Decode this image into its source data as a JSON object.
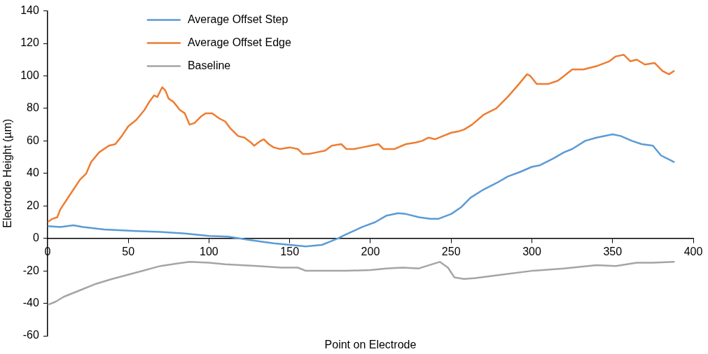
{
  "chart_data": {
    "type": "line",
    "xlabel": "Point on Electrode",
    "ylabel": "Electrode Height (µm)",
    "xlim": [
      0,
      400
    ],
    "xticks": [
      0,
      50,
      100,
      150,
      200,
      250,
      300,
      350,
      400
    ],
    "ylim": [
      -60,
      140
    ],
    "yticks": [
      -60,
      -40,
      -20,
      0,
      20,
      40,
      60,
      80,
      100,
      120,
      140
    ],
    "grid": false,
    "legend": "top left",
    "marker": "none",
    "line_style": "solid",
    "series": [
      {
        "name": "Average Offset Step",
        "color": "#5b9bd5",
        "x": [
          0,
          8,
          16,
          22,
          35,
          55,
          70,
          85,
          100,
          112,
          125,
          140,
          150,
          160,
          170,
          175,
          180,
          185,
          195,
          203,
          210,
          217,
          222,
          230,
          237,
          242,
          250,
          256,
          262,
          270,
          278,
          285,
          293,
          300,
          305,
          313,
          320,
          325,
          333,
          340,
          350,
          355,
          362,
          368,
          375,
          380,
          386,
          388
        ],
        "values": [
          7.5,
          7,
          8,
          7,
          5.5,
          4.5,
          4,
          3,
          1.5,
          1,
          -1,
          -3,
          -4,
          -5,
          -4,
          -2,
          0,
          2.5,
          7,
          10,
          14,
          15.5,
          15,
          13,
          12,
          12,
          15,
          19,
          25,
          30,
          34,
          38,
          41,
          44,
          45,
          49,
          53,
          55,
          60,
          62,
          64,
          63,
          60,
          58,
          57,
          51,
          48,
          47
        ]
      },
      {
        "name": "Average Offset Edge",
        "color": "#ed7d31",
        "x": [
          0,
          3,
          6,
          8,
          12,
          16,
          20,
          24,
          27,
          32,
          38,
          42,
          46,
          50,
          55,
          60,
          63,
          66,
          68,
          71,
          73,
          75,
          78,
          82,
          85,
          88,
          91,
          95,
          98,
          102,
          106,
          110,
          113,
          118,
          122,
          126,
          128,
          132,
          134,
          137,
          140,
          144,
          150,
          155,
          158,
          162,
          167,
          172,
          176,
          182,
          185,
          190,
          195,
          200,
          205,
          208,
          215,
          222,
          228,
          232,
          236,
          240,
          245,
          250,
          255,
          258,
          263,
          270,
          278,
          285,
          292,
          297,
          299,
          303,
          310,
          316,
          320,
          325,
          332,
          340,
          348,
          352,
          357,
          361,
          365,
          370,
          376,
          381,
          385,
          388
        ],
        "values": [
          10,
          12,
          13,
          18,
          24,
          30,
          36,
          40,
          47,
          53,
          57,
          58,
          63,
          69,
          73,
          79,
          84,
          88,
          87,
          93,
          91,
          86,
          84,
          79,
          77,
          70,
          71,
          75,
          77,
          77,
          74,
          72,
          68,
          63,
          62,
          59,
          57,
          60,
          61,
          58,
          56,
          55,
          56,
          55,
          52,
          52,
          53,
          54,
          57,
          58,
          55,
          55,
          56,
          57,
          58,
          55,
          55,
          58,
          59,
          60,
          62,
          61,
          63,
          65,
          66,
          67,
          70,
          76,
          80,
          87,
          95,
          101,
          100,
          95,
          95,
          97,
          100,
          104,
          104,
          106,
          109,
          112,
          113,
          109,
          110,
          107,
          108,
          103,
          101,
          103
        ]
      },
      {
        "name": "Baseline",
        "color": "#a5a5a5",
        "x": [
          0,
          5,
          10,
          20,
          30,
          40,
          55,
          70,
          80,
          88,
          100,
          110,
          130,
          145,
          155,
          160,
          170,
          185,
          200,
          210,
          220,
          230,
          238,
          243,
          248,
          252,
          258,
          265,
          280,
          300,
          320,
          340,
          352,
          365,
          375,
          388
        ],
        "values": [
          -41,
          -39,
          -36,
          -32,
          -28,
          -25,
          -21,
          -17,
          -15.5,
          -14.5,
          -15,
          -16,
          -17,
          -18,
          -18,
          -20,
          -20,
          -20,
          -19.5,
          -18.5,
          -18,
          -18.5,
          -16,
          -14.5,
          -18,
          -24,
          -25,
          -24.5,
          -22.5,
          -20,
          -18.5,
          -16.5,
          -17,
          -15,
          -15,
          -14.5
        ]
      }
    ]
  }
}
